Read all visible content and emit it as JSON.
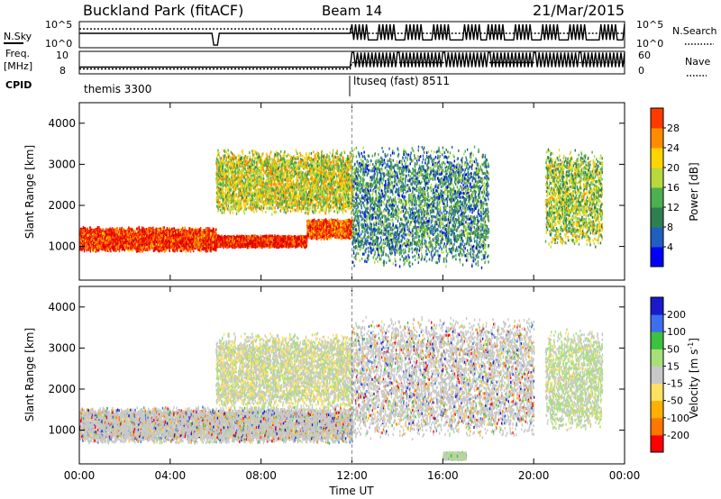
{
  "header": {
    "station": "Buckland Park (fitACF)",
    "beam": "Beam 14",
    "date": "21/Mar/2015"
  },
  "top_panels": {
    "nsky_label": "N.Sky",
    "nsky_ticks": [
      "10^5",
      "10^0"
    ],
    "nsearch_label": "N.Search",
    "nsearch_ticks": [
      "10^5",
      "10^0"
    ],
    "freq_label": "Freq.",
    "freq_unit": "[MHz]",
    "freq_ticks": [
      "10",
      "8"
    ],
    "nave_label": "Nave",
    "nave_ticks": [
      "60",
      "0"
    ],
    "cpid_label": "CPID",
    "cpid_programs": [
      "themis 3300",
      "ltuseq (fast) 8511"
    ]
  },
  "colors": {
    "power_scale": [
      "#0000ff",
      "#1e5fbf",
      "#2f7f4f",
      "#4caf50",
      "#b8d83c",
      "#ffd400",
      "#ff8c00",
      "#ff3a00",
      "#e00000"
    ],
    "velocity_scale": [
      "#ff0000",
      "#ff7700",
      "#ffb000",
      "#ffe060",
      "#c8c8c8",
      "#a6e07a",
      "#3cc23c",
      "#3c6ef0",
      "#1a1acc"
    ],
    "ground_scatter": "#c8c8c8"
  },
  "chart_data": [
    {
      "type": "heatmap",
      "panel": "power",
      "xlabel": "",
      "ylabel": "Slant Range [km]",
      "xlim": [
        "00:00",
        "24:00"
      ],
      "ylim": [
        180,
        4500
      ],
      "yticks": [
        "1000",
        "2000",
        "3000",
        "4000"
      ],
      "colorbar": {
        "label": "Power [dB]",
        "ticks": [
          "4",
          "8",
          "12",
          "16",
          "20",
          "24",
          "28"
        ],
        "range": [
          0,
          30
        ]
      },
      "features": [
        {
          "time": "00:00-06:00",
          "range_km": [
            900,
            1500
          ],
          "power_db": 26
        },
        {
          "time": "06:00-10:00",
          "range_km": [
            1000,
            1300
          ],
          "power_db": 27
        },
        {
          "time": "10:00-12:00",
          "range_km": [
            1200,
            1700
          ],
          "power_db": 24
        },
        {
          "time": "06:00-12:00",
          "range_km": [
            1800,
            3400
          ],
          "power_db": 16
        },
        {
          "time": "12:00-18:00",
          "range_km": [
            500,
            3500
          ],
          "power_db": 9
        },
        {
          "time": "20:30-23:00",
          "range_km": [
            1000,
            3400
          ],
          "power_db": 14
        }
      ]
    },
    {
      "type": "heatmap",
      "panel": "velocity",
      "xlabel": "Time UT",
      "ylabel": "Slant Range [km]",
      "xlim": [
        "00:00",
        "24:00"
      ],
      "ylim": [
        180,
        4500
      ],
      "xticks": [
        "00:00",
        "04:00",
        "08:00",
        "12:00",
        "16:00",
        "20:00",
        "00:00"
      ],
      "yticks": [
        "1000",
        "2000",
        "3000",
        "4000"
      ],
      "colorbar": {
        "label": "Velocity [m s",
        "label_exponent": "-1",
        "label_close": "]",
        "ticks": [
          "-200",
          "-100",
          "-50",
          "-15",
          "15",
          "50",
          "100",
          "200"
        ],
        "range": [
          -250,
          250
        ]
      },
      "features": [
        {
          "time": "00:00-12:00",
          "range_km": [
            700,
            1600
          ],
          "velocity": "ground scatter"
        },
        {
          "time": "06:00-12:00",
          "range_km": [
            1500,
            3400
          ],
          "velocity_ms": 0
        },
        {
          "time": "12:00-20:00",
          "range_km": [
            800,
            3800
          ],
          "velocity": "ground scatter"
        },
        {
          "time": "16:00-17:00",
          "range_km": [
            300,
            500
          ],
          "velocity_ms": 30
        },
        {
          "time": "20:30-23:00",
          "range_km": [
            1000,
            3500
          ],
          "velocity_ms": 20
        }
      ]
    }
  ]
}
